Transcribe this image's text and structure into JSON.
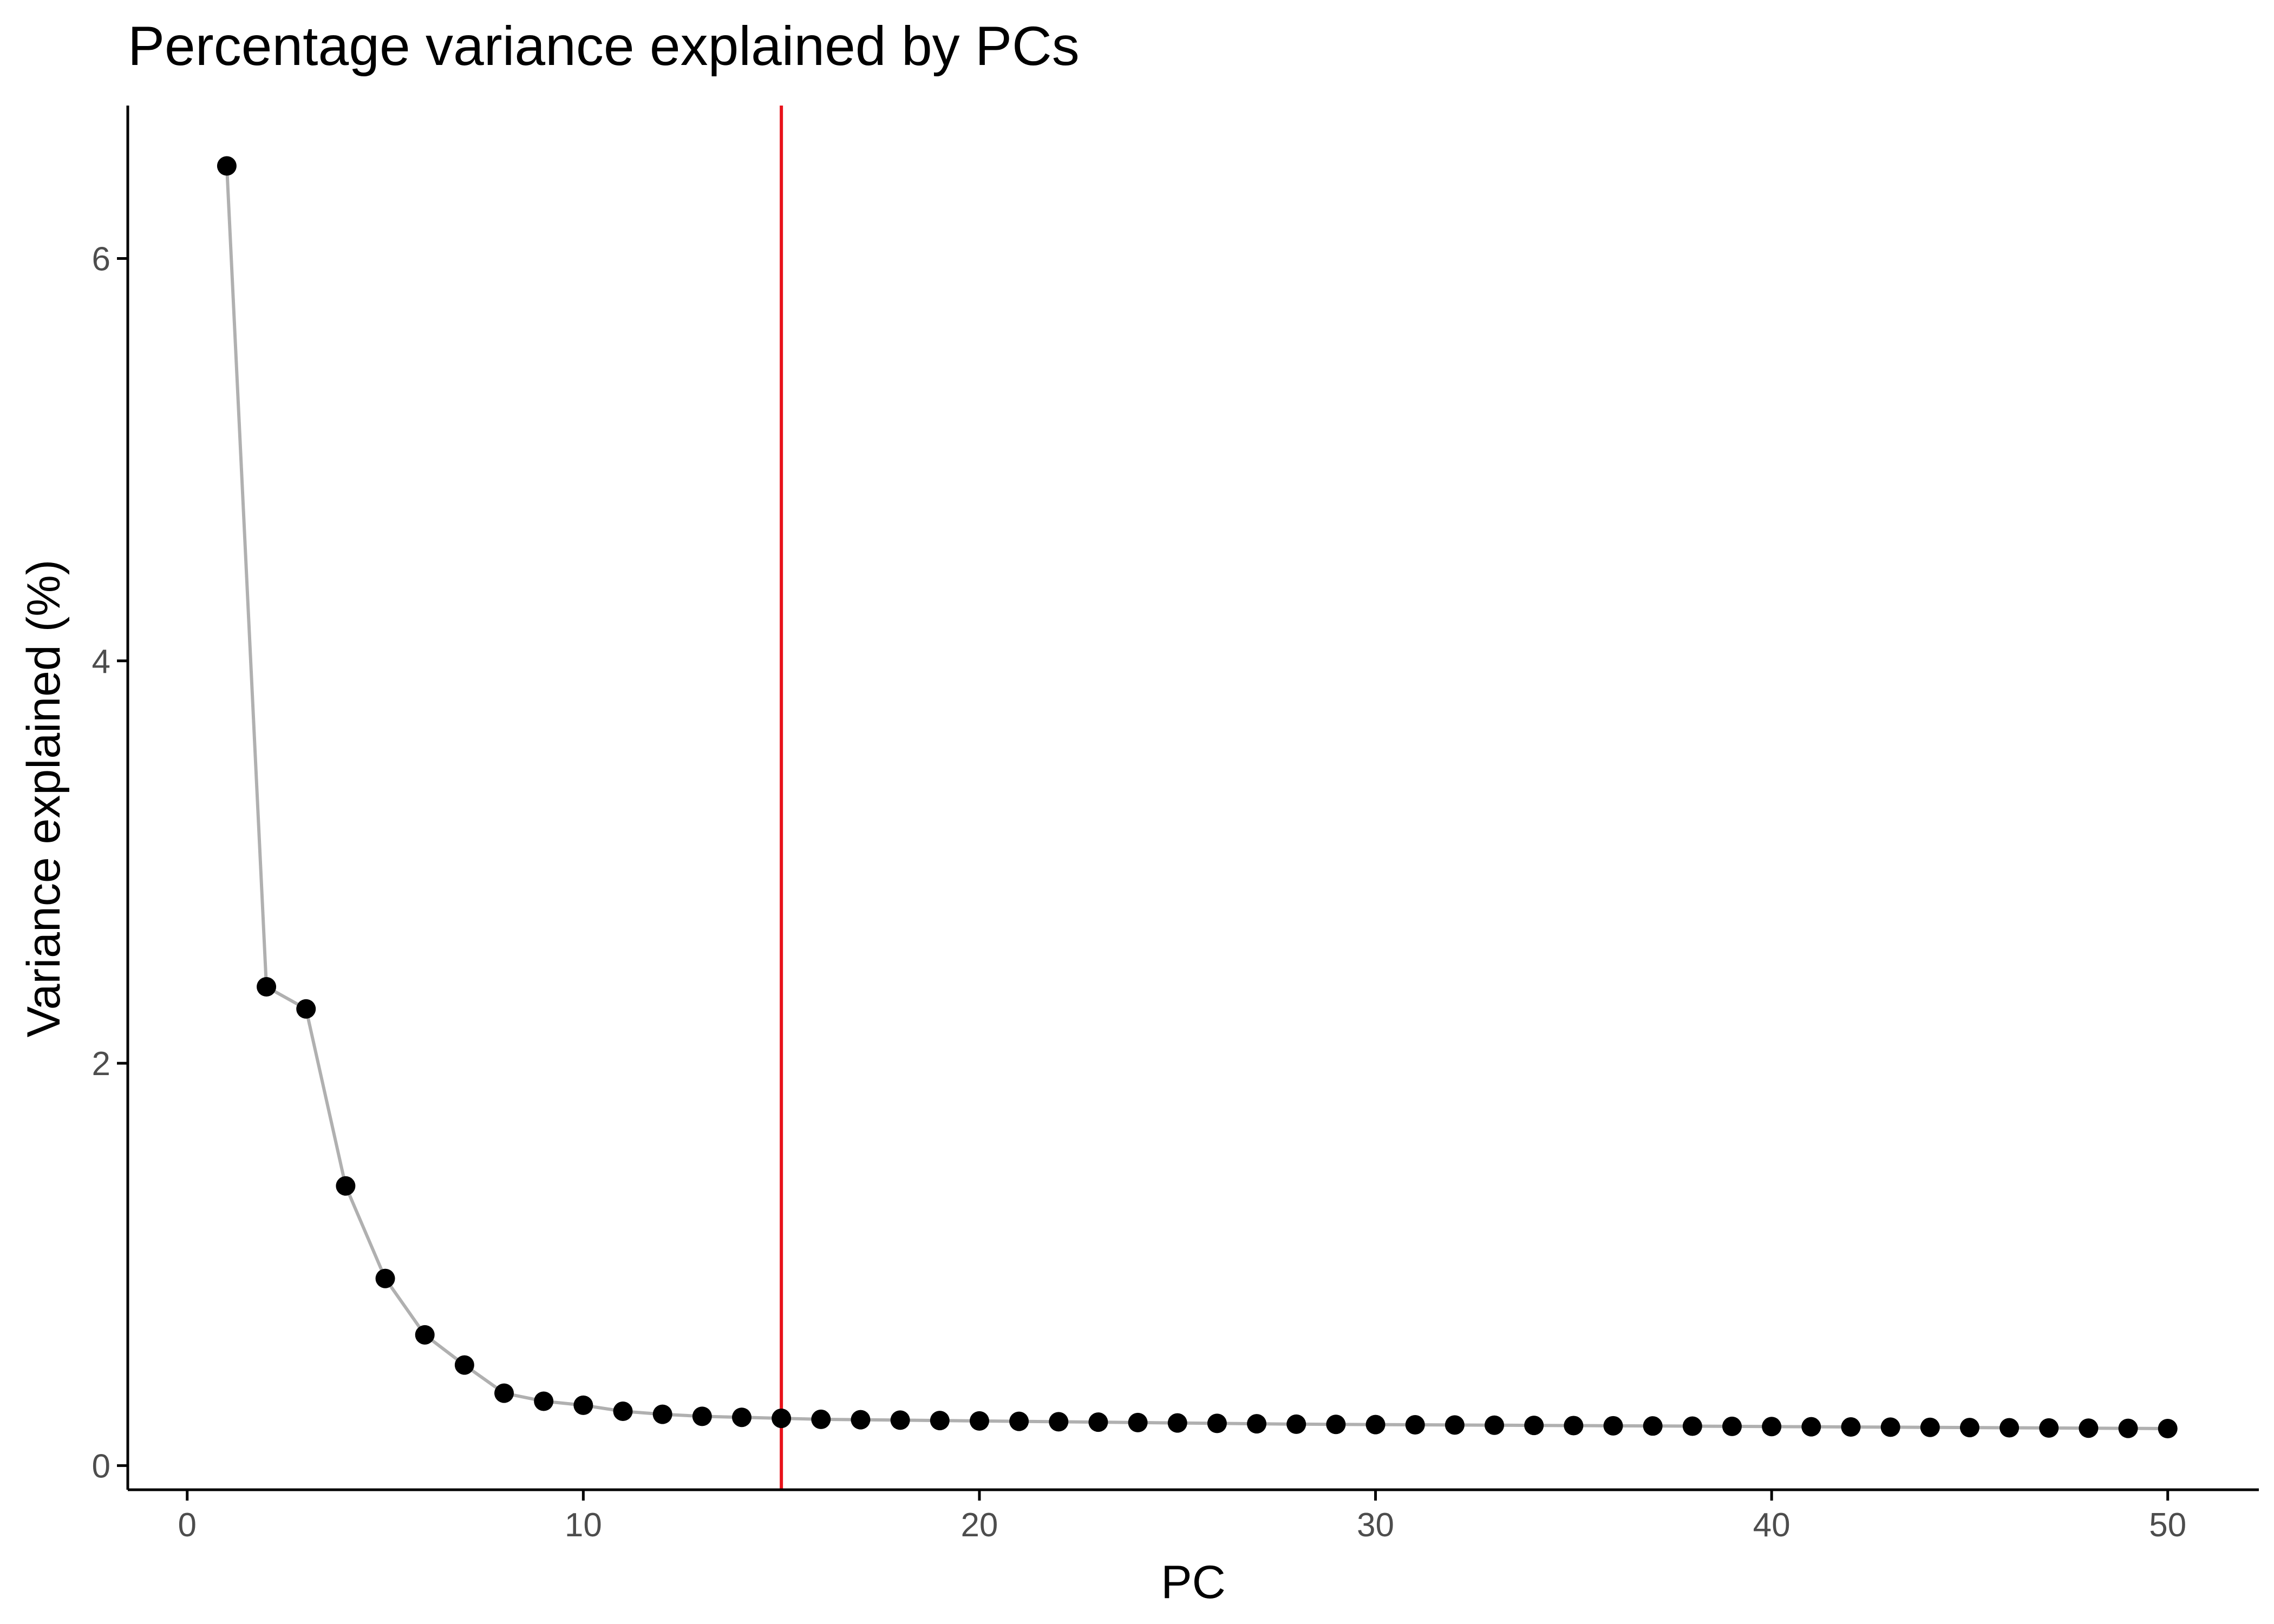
{
  "colors": {
    "point": "#000000",
    "line": "#b0b0b0",
    "reference_line": "#e8131b"
  },
  "chart_data": {
    "type": "scatter",
    "title": "Percentage variance explained by PCs",
    "xlabel": "PC",
    "ylabel": "Variance explained (%)",
    "xlim": [
      -1.5,
      52.3
    ],
    "ylim": [
      -0.12,
      6.76
    ],
    "x_ticks": [
      0,
      10,
      20,
      30,
      40,
      50
    ],
    "y_ticks": [
      0,
      2,
      4,
      6
    ],
    "grid": false,
    "legend": "none",
    "connect_points": true,
    "reference_line": {
      "orientation": "vertical",
      "x": 15
    },
    "x": [
      1,
      2,
      3,
      4,
      5,
      6,
      7,
      8,
      9,
      10,
      11,
      12,
      13,
      14,
      15,
      16,
      17,
      18,
      19,
      20,
      21,
      22,
      23,
      24,
      25,
      26,
      27,
      28,
      29,
      30,
      31,
      32,
      33,
      34,
      35,
      36,
      37,
      38,
      39,
      40,
      41,
      42,
      43,
      44,
      45,
      46,
      47,
      48,
      49,
      50
    ],
    "series": [
      {
        "values": [
          6.46,
          2.38,
          2.27,
          1.39,
          0.93,
          0.65,
          0.5,
          0.36,
          0.32,
          0.3,
          0.27,
          0.255,
          0.245,
          0.24,
          0.235,
          0.23,
          0.228,
          0.226,
          0.224,
          0.222,
          0.22,
          0.218,
          0.216,
          0.214,
          0.212,
          0.21,
          0.208,
          0.206,
          0.205,
          0.204,
          0.203,
          0.202,
          0.201,
          0.2,
          0.199,
          0.198,
          0.197,
          0.196,
          0.195,
          0.194,
          0.193,
          0.192,
          0.191,
          0.19,
          0.189,
          0.188,
          0.187,
          0.186,
          0.185,
          0.184
        ]
      }
    ]
  }
}
